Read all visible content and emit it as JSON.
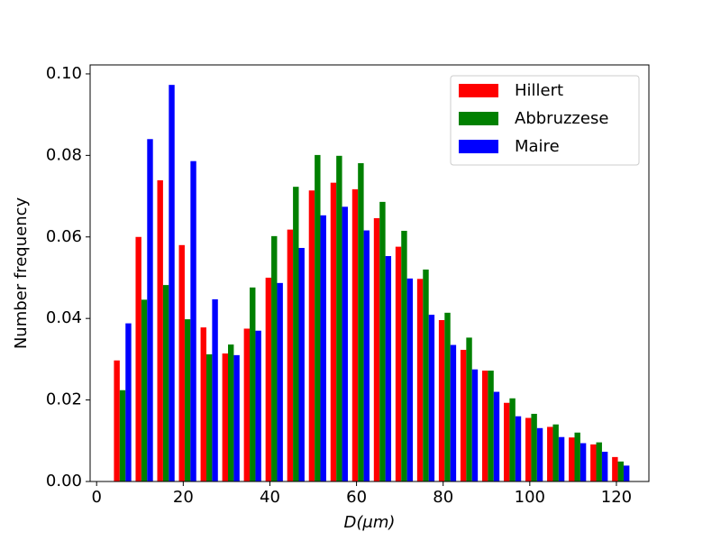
{
  "chart_data": {
    "type": "histogram",
    "xlabel": "D(μm)",
    "ylabel": "Number frequency",
    "bins": [
      3.5,
      8.5,
      13.5,
      18.5,
      23.5,
      28.5,
      33.5,
      38.5,
      43.5,
      48.5,
      53.5,
      58.5,
      63.5,
      68.5,
      73.5,
      78.5,
      83.5,
      88.5,
      93.5,
      98.5,
      103.5,
      108.5,
      113.5,
      118.5,
      123.5
    ],
    "series": [
      {
        "name": "Hillert",
        "color": "#ff0000",
        "values": [
          0.0297,
          0.06,
          0.0739,
          0.058,
          0.0378,
          0.0314,
          0.0375,
          0.05,
          0.0618,
          0.0714,
          0.0733,
          0.0717,
          0.0646,
          0.0576,
          0.0497,
          0.0396,
          0.0323,
          0.0272,
          0.0193,
          0.0156,
          0.0134,
          0.0108,
          0.0091,
          0.006
        ]
      },
      {
        "name": "Abbruzzese",
        "color": "#008000",
        "values": [
          0.0224,
          0.0446,
          0.0482,
          0.0398,
          0.0312,
          0.0336,
          0.0476,
          0.0602,
          0.0723,
          0.0801,
          0.0799,
          0.0781,
          0.0686,
          0.0615,
          0.052,
          0.0414,
          0.0353,
          0.0272,
          0.0204,
          0.0166,
          0.014,
          0.012,
          0.0096,
          0.0049
        ]
      },
      {
        "name": "Maire",
        "color": "#0000ff",
        "values": [
          0.0388,
          0.084,
          0.0973,
          0.0786,
          0.0447,
          0.031,
          0.037,
          0.0487,
          0.0573,
          0.0653,
          0.0674,
          0.0616,
          0.0553,
          0.0498,
          0.0409,
          0.0335,
          0.0275,
          0.022,
          0.016,
          0.0131,
          0.0109,
          0.0094,
          0.0073,
          0.0039
        ]
      }
    ],
    "xlim": [
      -1.5,
      127.5
    ],
    "xticks": [
      0,
      20,
      40,
      60,
      80,
      100,
      120
    ],
    "ylim": [
      0,
      0.1022
    ],
    "yticks": [
      {
        "value": 0,
        "label": "0.00"
      },
      {
        "value": 0.02,
        "label": "0.02"
      },
      {
        "value": 0.04,
        "label": "0.04"
      },
      {
        "value": 0.06,
        "label": "0.06"
      },
      {
        "value": 0.08,
        "label": "0.08"
      },
      {
        "value": 0.1,
        "label": "0.10"
      }
    ],
    "legend": "upper right"
  }
}
